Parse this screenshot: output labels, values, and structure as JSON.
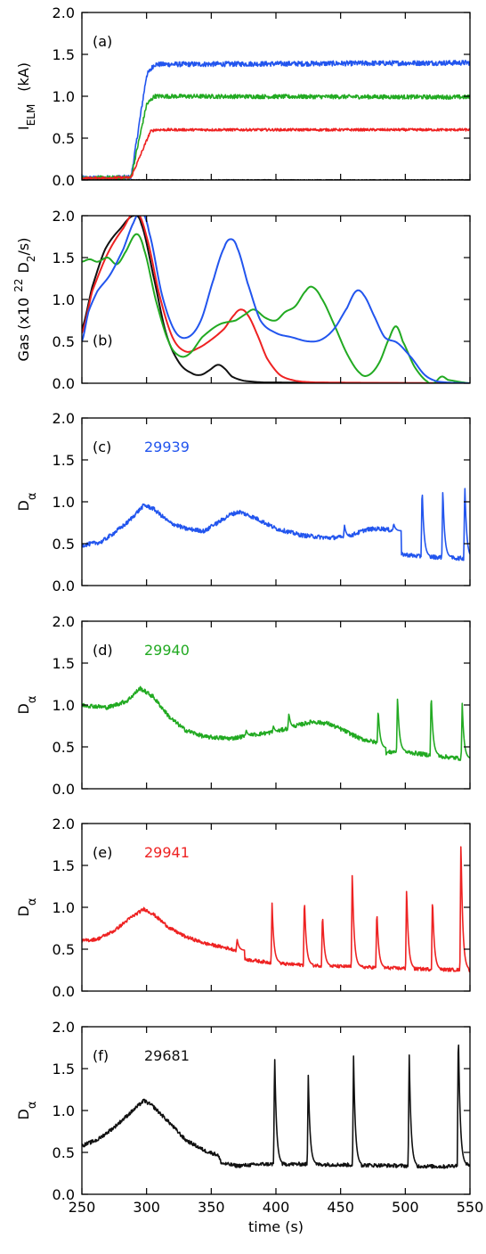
{
  "colors": {
    "blue": "#2255ee",
    "green": "#22aa22",
    "red": "#ee2222",
    "black": "#111111"
  },
  "chart_data": [
    {
      "type": "line",
      "panel": "(a)",
      "ylabel": "Iₑₗₘ (kA)",
      "ylabel_main": "I",
      "ylabel_sub": "ELM",
      "ylabel_unit": "(kA)",
      "xlim": [
        250,
        550
      ],
      "ylim": [
        0,
        2.0
      ],
      "yticks": [
        "0.0",
        "0.5",
        "1.0",
        "1.5",
        "2.0"
      ],
      "series": [
        {
          "color": "blue",
          "noise": 0.03,
          "points": [
            [
              250,
              0.02
            ],
            [
              288,
              0.03
            ],
            [
              300,
              1.25
            ],
            [
              306,
              1.38
            ],
            [
              550,
              1.4
            ]
          ]
        },
        {
          "color": "green",
          "noise": 0.025,
          "points": [
            [
              250,
              0.02
            ],
            [
              288,
              0.03
            ],
            [
              300,
              0.9
            ],
            [
              306,
              1.0
            ],
            [
              550,
              0.99
            ]
          ]
        },
        {
          "color": "red",
          "noise": 0.015,
          "points": [
            [
              250,
              0.02
            ],
            [
              288,
              0.03
            ],
            [
              303,
              0.58
            ],
            [
              307,
              0.6
            ],
            [
              550,
              0.6
            ]
          ]
        },
        {
          "color": "black",
          "noise": 0.004,
          "points": [
            [
              250,
              0.0
            ],
            [
              550,
              0.0
            ]
          ]
        }
      ]
    },
    {
      "type": "line",
      "panel": "(b)",
      "ylabel_main": "Gas (x10",
      "ylabel_sup": "22",
      "ylabel_unit": "D",
      "ylabel_unit_sub": "2",
      "ylabel_tail": "/s)",
      "xlim": [
        250,
        550
      ],
      "ylim": [
        0,
        2.0
      ],
      "yticks": [
        "0.0",
        "0.5",
        "1.0",
        "1.5",
        "2.0"
      ],
      "series": [
        {
          "color": "black",
          "noise": 0,
          "points": [
            [
              250,
              0.65
            ],
            [
              258,
              1.15
            ],
            [
              268,
              1.6
            ],
            [
              280,
              1.85
            ],
            [
              290,
              2.0
            ],
            [
              296,
              1.9
            ],
            [
              305,
              1.3
            ],
            [
              315,
              0.6
            ],
            [
              325,
              0.25
            ],
            [
              335,
              0.12
            ],
            [
              342,
              0.1
            ],
            [
              348,
              0.15
            ],
            [
              355,
              0.22
            ],
            [
              360,
              0.18
            ],
            [
              366,
              0.08
            ],
            [
              375,
              0.03
            ],
            [
              390,
              0.01
            ],
            [
              550,
              0.0
            ]
          ]
        },
        {
          "color": "red",
          "noise": 0,
          "points": [
            [
              250,
              0.6
            ],
            [
              258,
              1.1
            ],
            [
              270,
              1.55
            ],
            [
              282,
              1.85
            ],
            [
              292,
              2.05
            ],
            [
              300,
              1.75
            ],
            [
              310,
              1.05
            ],
            [
              320,
              0.55
            ],
            [
              330,
              0.38
            ],
            [
              340,
              0.42
            ],
            [
              350,
              0.52
            ],
            [
              360,
              0.65
            ],
            [
              368,
              0.82
            ],
            [
              373,
              0.88
            ],
            [
              378,
              0.82
            ],
            [
              385,
              0.6
            ],
            [
              393,
              0.3
            ],
            [
              403,
              0.1
            ],
            [
              415,
              0.03
            ],
            [
              430,
              0.01
            ],
            [
              550,
              0.0
            ]
          ]
        },
        {
          "color": "green",
          "noise": 0,
          "points": [
            [
              250,
              1.45
            ],
            [
              256,
              1.48
            ],
            [
              262,
              1.45
            ],
            [
              270,
              1.5
            ],
            [
              277,
              1.42
            ],
            [
              283,
              1.55
            ],
            [
              292,
              1.78
            ],
            [
              298,
              1.6
            ],
            [
              307,
              1.0
            ],
            [
              317,
              0.5
            ],
            [
              325,
              0.33
            ],
            [
              333,
              0.35
            ],
            [
              343,
              0.55
            ],
            [
              356,
              0.7
            ],
            [
              369,
              0.75
            ],
            [
              376,
              0.82
            ],
            [
              383,
              0.88
            ],
            [
              392,
              0.78
            ],
            [
              400,
              0.75
            ],
            [
              407,
              0.85
            ],
            [
              415,
              0.92
            ],
            [
              423,
              1.1
            ],
            [
              428,
              1.15
            ],
            [
              435,
              1.02
            ],
            [
              445,
              0.7
            ],
            [
              455,
              0.35
            ],
            [
              465,
              0.12
            ],
            [
              472,
              0.1
            ],
            [
              480,
              0.25
            ],
            [
              488,
              0.55
            ],
            [
              493,
              0.68
            ],
            [
              498,
              0.5
            ],
            [
              507,
              0.2
            ],
            [
              517,
              0.02
            ],
            [
              522,
              0.0
            ],
            [
              528,
              0.08
            ],
            [
              533,
              0.04
            ],
            [
              550,
              0.0
            ]
          ]
        },
        {
          "color": "blue",
          "noise": 0,
          "points": [
            [
              250,
              0.5
            ],
            [
              255,
              0.85
            ],
            [
              262,
              1.1
            ],
            [
              272,
              1.3
            ],
            [
              282,
              1.6
            ],
            [
              290,
              1.92
            ],
            [
              296,
              2.05
            ],
            [
              302,
              1.8
            ],
            [
              312,
              1.05
            ],
            [
              322,
              0.62
            ],
            [
              332,
              0.55
            ],
            [
              342,
              0.75
            ],
            [
              352,
              1.25
            ],
            [
              360,
              1.62
            ],
            [
              365,
              1.72
            ],
            [
              370,
              1.62
            ],
            [
              378,
              1.2
            ],
            [
              388,
              0.75
            ],
            [
              400,
              0.6
            ],
            [
              412,
              0.55
            ],
            [
              425,
              0.5
            ],
            [
              435,
              0.52
            ],
            [
              445,
              0.65
            ],
            [
              455,
              0.9
            ],
            [
              462,
              1.1
            ],
            [
              468,
              1.05
            ],
            [
              476,
              0.8
            ],
            [
              484,
              0.55
            ],
            [
              494,
              0.48
            ],
            [
              505,
              0.3
            ],
            [
              515,
              0.1
            ],
            [
              525,
              0.02
            ],
            [
              550,
              0.0
            ]
          ]
        }
      ]
    },
    {
      "type": "line",
      "panel": "(c)",
      "shot": "29939",
      "shot_color": "blue",
      "ylabel_main": "D",
      "ylabel_alpha": "α",
      "xlim": [
        250,
        550
      ],
      "ylim": [
        0,
        2.0
      ],
      "yticks": [
        "0.0",
        "0.5",
        "1.0",
        "1.5",
        "2.0"
      ],
      "series": [
        {
          "color": "blue",
          "noise": 0.025,
          "points": [
            [
              250,
              0.48
            ],
            [
              265,
              0.52
            ],
            [
              275,
              0.63
            ],
            [
              285,
              0.75
            ],
            [
              298,
              0.96
            ],
            [
              305,
              0.92
            ],
            [
              318,
              0.75
            ],
            [
              330,
              0.68
            ],
            [
              345,
              0.65
            ],
            [
              352,
              0.72
            ],
            [
              365,
              0.85
            ],
            [
              372,
              0.88
            ],
            [
              385,
              0.8
            ],
            [
              400,
              0.68
            ],
            [
              420,
              0.6
            ],
            [
              440,
              0.57
            ],
            [
              455,
              0.58
            ],
            [
              470,
              0.67
            ],
            [
              482,
              0.68
            ],
            [
              492,
              0.65
            ],
            [
              494,
              0.38
            ],
            [
              510,
              0.35
            ],
            [
              550,
              0.32
            ]
          ],
          "spikes": [
            [
              350,
              0.73
            ],
            [
              453,
              0.72
            ],
            [
              491,
              0.74
            ],
            [
              513,
              1.19
            ],
            [
              529,
              1.16
            ],
            [
              546,
              1.22
            ]
          ]
        }
      ]
    },
    {
      "type": "line",
      "panel": "(d)",
      "shot": "29940",
      "shot_color": "green",
      "ylabel_main": "D",
      "ylabel_alpha": "α",
      "xlim": [
        250,
        550
      ],
      "ylim": [
        0,
        2.0
      ],
      "yticks": [
        "0.0",
        "0.5",
        "1.0",
        "1.5",
        "2.0"
      ],
      "series": [
        {
          "color": "green",
          "noise": 0.025,
          "points": [
            [
              250,
              1.0
            ],
            [
              270,
              0.97
            ],
            [
              285,
              1.05
            ],
            [
              295,
              1.2
            ],
            [
              305,
              1.1
            ],
            [
              318,
              0.85
            ],
            [
              330,
              0.7
            ],
            [
              345,
              0.62
            ],
            [
              365,
              0.6
            ],
            [
              385,
              0.65
            ],
            [
              400,
              0.68
            ],
            [
              415,
              0.75
            ],
            [
              428,
              0.8
            ],
            [
              440,
              0.78
            ],
            [
              452,
              0.7
            ],
            [
              465,
              0.6
            ],
            [
              478,
              0.55
            ],
            [
              480,
              0.42
            ],
            [
              495,
              0.45
            ],
            [
              520,
              0.4
            ],
            [
              550,
              0.35
            ]
          ],
          "spikes": [
            [
              377,
              0.7
            ],
            [
              398,
              0.75
            ],
            [
              410,
              0.9
            ],
            [
              479,
              0.96
            ],
            [
              494,
              1.11
            ],
            [
              520,
              1.15
            ],
            [
              544,
              1.02
            ]
          ]
        }
      ]
    },
    {
      "type": "line",
      "panel": "(e)",
      "shot": "29941",
      "shot_color": "red",
      "ylabel_main": "D",
      "ylabel_alpha": "α",
      "xlim": [
        250,
        550
      ],
      "ylim": [
        0,
        2.0
      ],
      "yticks": [
        "0.0",
        "0.5",
        "1.0",
        "1.5",
        "2.0"
      ],
      "series": [
        {
          "color": "red",
          "noise": 0.02,
          "points": [
            [
              250,
              0.6
            ],
            [
              262,
              0.62
            ],
            [
              275,
              0.72
            ],
            [
              288,
              0.88
            ],
            [
              298,
              0.98
            ],
            [
              305,
              0.92
            ],
            [
              318,
              0.75
            ],
            [
              330,
              0.65
            ],
            [
              345,
              0.57
            ],
            [
              360,
              0.52
            ],
            [
              372,
              0.48
            ],
            [
              376,
              0.38
            ],
            [
              390,
              0.35
            ],
            [
              410,
              0.32
            ],
            [
              440,
              0.3
            ],
            [
              480,
              0.28
            ],
            [
              520,
              0.26
            ],
            [
              550,
              0.25
            ]
          ],
          "spikes": [
            [
              370,
              0.62
            ],
            [
              397,
              1.05
            ],
            [
              422,
              1.13
            ],
            [
              436,
              0.94
            ],
            [
              459,
              1.45
            ],
            [
              478,
              0.98
            ],
            [
              501,
              1.25
            ],
            [
              521,
              1.14
            ],
            [
              543,
              1.82
            ]
          ]
        }
      ]
    },
    {
      "type": "line",
      "panel": "(f)",
      "shot": "29681",
      "shot_color": "black",
      "ylabel_main": "D",
      "ylabel_alpha": "α",
      "xlabel": "time (s)",
      "xlim": [
        250,
        550
      ],
      "ylim": [
        0,
        2.0
      ],
      "yticks": [
        "0.0",
        "0.5",
        "1.0",
        "1.5",
        "2.0"
      ],
      "xticks": [
        "250",
        "300",
        "350",
        "400",
        "450",
        "500",
        "550"
      ],
      "series": [
        {
          "color": "black",
          "noise": 0.022,
          "points": [
            [
              250,
              0.58
            ],
            [
              262,
              0.65
            ],
            [
              275,
              0.8
            ],
            [
              288,
              0.98
            ],
            [
              298,
              1.12
            ],
            [
              305,
              1.05
            ],
            [
              318,
              0.85
            ],
            [
              330,
              0.65
            ],
            [
              345,
              0.52
            ],
            [
              355,
              0.47
            ],
            [
              358,
              0.37
            ],
            [
              370,
              0.34
            ],
            [
              390,
              0.36
            ],
            [
              420,
              0.36
            ],
            [
              460,
              0.35
            ],
            [
              500,
              0.34
            ],
            [
              530,
              0.33
            ],
            [
              550,
              0.36
            ]
          ],
          "spikes": [
            [
              399,
              1.7
            ],
            [
              425,
              1.42
            ],
            [
              460,
              1.65
            ],
            [
              503,
              1.71
            ],
            [
              541,
              2.0
            ]
          ]
        }
      ]
    }
  ]
}
